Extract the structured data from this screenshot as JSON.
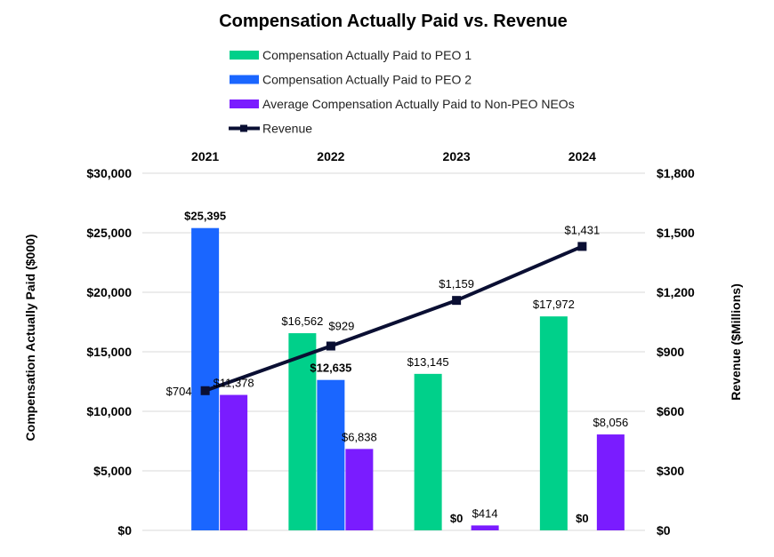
{
  "chart_data": {
    "type": "bar",
    "title": "Compensation Actually Paid vs. Revenue",
    "categories": [
      "2021",
      "2022",
      "2023",
      "2024"
    ],
    "ylabel": "Compensation Actually Paid ($000)",
    "ylabel_right": "Revenue ($Millions)",
    "ylim": [
      0,
      30000
    ],
    "ylim_right": [
      0,
      1800
    ],
    "yticks": [
      "$0",
      "$5,000",
      "$10,000",
      "$15,000",
      "$20,000",
      "$25,000",
      "$30,000"
    ],
    "yticks_right": [
      "$0",
      "$300",
      "$600",
      "$900",
      "$1,200",
      "$1,500",
      "$1,800"
    ],
    "grid": true,
    "legend_position": "top",
    "series": [
      {
        "name": "Compensation Actually Paid to PEO 1",
        "kind": "bar",
        "axis": "left",
        "color": "#00D08A",
        "values": [
          null,
          16562,
          13145,
          17972
        ],
        "labels": [
          "",
          "$16,562",
          "$13,145",
          "$17,972"
        ]
      },
      {
        "name": "Compensation Actually Paid to PEO 2",
        "kind": "bar",
        "axis": "left",
        "color": "#1A66FF",
        "values": [
          25395,
          12635,
          0,
          0
        ],
        "labels": [
          "$25,395",
          "$12,635",
          "$0",
          "$0"
        ]
      },
      {
        "name": "Average Compensation Actually Paid to Non-PEO NEOs",
        "kind": "bar",
        "axis": "left",
        "color": "#7A1CFF",
        "values": [
          11378,
          6838,
          414,
          8056
        ],
        "labels": [
          "$11,378",
          "$6,838",
          "$414",
          "$8,056"
        ]
      },
      {
        "name": "Revenue",
        "kind": "line",
        "axis": "right",
        "color": "#0A0F33",
        "values": [
          704,
          929,
          1159,
          1431
        ],
        "labels": [
          "$704",
          "$929",
          "$1,159",
          "$1,431"
        ]
      }
    ]
  }
}
